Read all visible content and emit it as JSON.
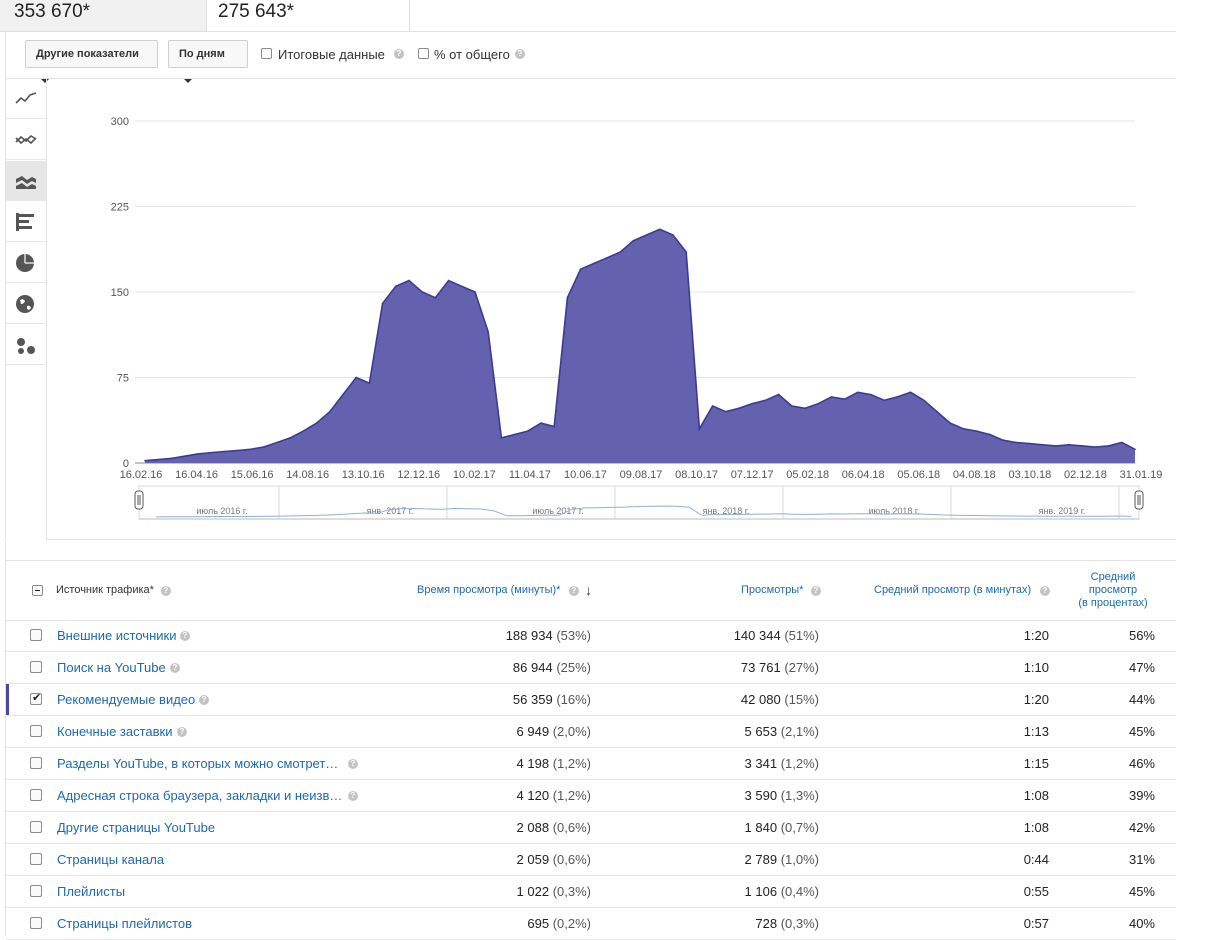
{
  "metrics": {
    "watch_time": "353 670*",
    "views": "275 643*"
  },
  "toolbar": {
    "metric_dropdown": "Другие показатели",
    "period_dropdown": "По дням",
    "totals_label": "Итоговые данные",
    "percent_label": "% от общего"
  },
  "sidebar_icons": [
    "line-chart-icon",
    "multi-line-chart-icon",
    "stacked-area-icon",
    "bar-chart-icon",
    "pie-chart-icon",
    "globe-map-icon",
    "bubble-chart-icon"
  ],
  "colors": {
    "series": "#3d3a94",
    "fill": "#6461ae",
    "link": "#1a6ab3"
  },
  "chart_data": {
    "type": "area",
    "y_ticks": [
      "300",
      "225",
      "150",
      "75",
      "0"
    ],
    "ylim": [
      0,
      300
    ],
    "x_ticks": [
      "16.02.16",
      "16.04.16",
      "15.06.16",
      "14.08.16",
      "13.10.16",
      "12.12.16",
      "10.02.17",
      "11.04.17",
      "10.06.17",
      "09.08.17",
      "08.10.17",
      "07.12.17",
      "05.02.18",
      "06.04.18",
      "05.06.18",
      "04.08.18",
      "03.10.18",
      "02.12.18",
      "31.01.19"
    ],
    "navigator_labels": [
      "июль 2016 г.",
      "янв. 2017 г.",
      "июль 2017 г.",
      "янв. 2018 г.",
      "июль 2018 г.",
      "янв. 2019 г."
    ],
    "series": [
      {
        "values": [
          2,
          3,
          4,
          6,
          8,
          9,
          10,
          11,
          12,
          14,
          18,
          22,
          28,
          35,
          45,
          60,
          75,
          70,
          140,
          155,
          160,
          150,
          145,
          160,
          155,
          150,
          115,
          22,
          25,
          28,
          35,
          32,
          145,
          170,
          175,
          180,
          185,
          195,
          200,
          205,
          200,
          185,
          30,
          50,
          45,
          48,
          52,
          55,
          60,
          50,
          48,
          52,
          58,
          56,
          62,
          60,
          55,
          58,
          62,
          55,
          45,
          35,
          30,
          28,
          25,
          20,
          18,
          17,
          16,
          15,
          16,
          15,
          14,
          15,
          18,
          12
        ]
      }
    ],
    "grid": true
  },
  "table": {
    "headers": {
      "source": "Источник трафика*",
      "watch_time": "Время просмотра (минуты)*",
      "views": "Просмотры*",
      "avg_duration": "Средний просмотр (в минутах)",
      "avg_pct_l1": "Средний",
      "avg_pct_l2": "просмотр",
      "avg_pct_l3": "(в процентах)"
    },
    "rows": [
      {
        "name": "Внешние источники",
        "wt": "188 934",
        "wtp": "(53%)",
        "v": "140 344",
        "vp": "(51%)",
        "d": "1:20",
        "p": "56%",
        "checked": false,
        "help": true
      },
      {
        "name": "Поиск на YouTube",
        "wt": "86 944",
        "wtp": "(25%)",
        "v": "73 761",
        "vp": "(27%)",
        "d": "1:10",
        "p": "47%",
        "checked": false,
        "help": true
      },
      {
        "name": "Рекомендуемые видео",
        "wt": "56 359",
        "wtp": "(16%)",
        "v": "42 080",
        "vp": "(15%)",
        "d": "1:20",
        "p": "44%",
        "checked": true,
        "help": true
      },
      {
        "name": "Конечные заставки",
        "wt": "6 949",
        "wtp": "(2,0%)",
        "v": "5 653",
        "vp": "(2,1%)",
        "d": "1:13",
        "p": "45%",
        "checked": false,
        "help": true
      },
      {
        "name": "Разделы YouTube, в которых можно смотрет…",
        "wt": "4 198",
        "wtp": "(1,2%)",
        "v": "3 341",
        "vp": "(1,2%)",
        "d": "1:15",
        "p": "46%",
        "checked": false,
        "help": true
      },
      {
        "name": "Адресная строка браузера, закладки и неизв…",
        "wt": "4 120",
        "wtp": "(1,2%)",
        "v": "3 590",
        "vp": "(1,3%)",
        "d": "1:08",
        "p": "39%",
        "checked": false,
        "help": true
      },
      {
        "name": "Другие страницы YouTube",
        "wt": "2 088",
        "wtp": "(0,6%)",
        "v": "1 840",
        "vp": "(0,7%)",
        "d": "1:08",
        "p": "42%",
        "checked": false,
        "help": false
      },
      {
        "name": "Страницы канала",
        "wt": "2 059",
        "wtp": "(0,6%)",
        "v": "2 789",
        "vp": "(1,0%)",
        "d": "0:44",
        "p": "31%",
        "checked": false,
        "help": false
      },
      {
        "name": "Плейлисты",
        "wt": "1 022",
        "wtp": "(0,3%)",
        "v": "1 106",
        "vp": "(0,4%)",
        "d": "0:55",
        "p": "45%",
        "checked": false,
        "help": false
      },
      {
        "name": "Страницы плейлистов",
        "wt": "695",
        "wtp": "(0,2%)",
        "v": "728",
        "vp": "(0,3%)",
        "d": "0:57",
        "p": "40%",
        "checked": false,
        "help": false
      }
    ]
  }
}
